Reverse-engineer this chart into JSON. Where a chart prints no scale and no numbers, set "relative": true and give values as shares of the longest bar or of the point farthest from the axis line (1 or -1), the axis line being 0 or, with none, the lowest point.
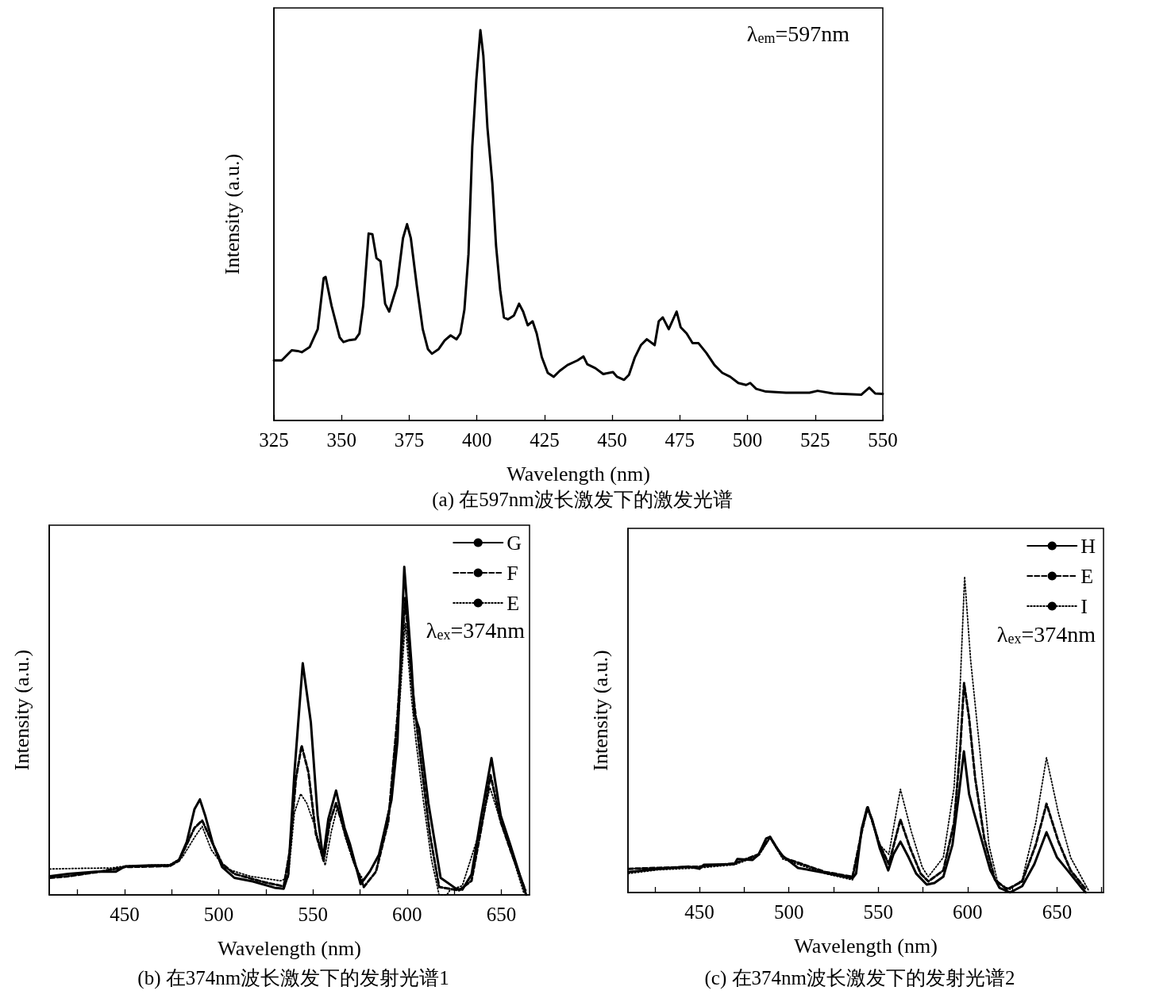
{
  "chart_data": [
    {
      "type": "line",
      "title": "(a) 在597nm波长激发下的激发光谱",
      "xlabel": "Wavelength (nm)",
      "ylabel": "Intensity (a.u.)",
      "annotations": [
        "λ$_{em}$=597nm"
      ],
      "relative": true,
      "marker": "none",
      "legend": false,
      "xlim": [
        325,
        550
      ],
      "xticks": [
        325,
        350,
        375,
        400,
        425,
        450,
        475,
        500,
        525,
        550
      ],
      "series": [
        {
          "color": "#000000",
          "line_style": "solid",
          "x": [
            325,
            327.9,
            331.6,
            333.8,
            335.3,
            338.2,
            341.2,
            343.4,
            344.1,
            346.3,
            349.3,
            350.7,
            352.9,
            355.1,
            356.6,
            358.0,
            360.0,
            361.4,
            362.9,
            364.4,
            366.1,
            367.6,
            370.5,
            372.7,
            374.2,
            375.6,
            377.8,
            380.0,
            381.9,
            383.4,
            385.9,
            388.1,
            390.3,
            392.5,
            393.9,
            395.4,
            396.9,
            398.3,
            399.8,
            401.3,
            402.4,
            403.9,
            405.7,
            407.1,
            408.6,
            410.0,
            411.5,
            413.7,
            415.6,
            417.1,
            418.8,
            420.6,
            422.1,
            424.0,
            426.2,
            428.4,
            430.6,
            433.5,
            437.2,
            439.4,
            440.8,
            443.8,
            446.7,
            450.3,
            451.8,
            454.4,
            456.2,
            458.4,
            460.6,
            462.8,
            465.7,
            467.2,
            468.7,
            470.9,
            473.8,
            475.3,
            477.5,
            479.7,
            481.9,
            484.8,
            487.8,
            490.7,
            493.6,
            496.6,
            499.5,
            501.0,
            503.2,
            506.8,
            514.2,
            522.9,
            525.9,
            531.7,
            542.0,
            545.0,
            547.2,
            550
          ],
          "values": [
            0.154,
            0.154,
            0.18,
            0.178,
            0.175,
            0.188,
            0.234,
            0.365,
            0.368,
            0.294,
            0.213,
            0.201,
            0.206,
            0.208,
            0.223,
            0.294,
            0.479,
            0.477,
            0.416,
            0.408,
            0.299,
            0.279,
            0.345,
            0.467,
            0.503,
            0.467,
            0.345,
            0.234,
            0.183,
            0.171,
            0.183,
            0.205,
            0.218,
            0.208,
            0.223,
            0.284,
            0.426,
            0.701,
            0.873,
            1,
            0.934,
            0.751,
            0.609,
            0.447,
            0.335,
            0.264,
            0.259,
            0.269,
            0.299,
            0.279,
            0.244,
            0.254,
            0.223,
            0.162,
            0.122,
            0.112,
            0.127,
            0.142,
            0.154,
            0.164,
            0.144,
            0.134,
            0.119,
            0.124,
            0.112,
            0.104,
            0.117,
            0.162,
            0.193,
            0.208,
            0.193,
            0.254,
            0.264,
            0.234,
            0.279,
            0.239,
            0.223,
            0.198,
            0.198,
            0.173,
            0.142,
            0.122,
            0.112,
            0.096,
            0.091,
            0.096,
            0.081,
            0.074,
            0.071,
            0.071,
            0.076,
            0.069,
            0.066,
            0.084,
            0.069,
            0.068
          ]
        }
      ]
    },
    {
      "type": "line",
      "title": "(b) 在374nm波长激发下的发射光谱1",
      "xlabel": "Wavelength (nm)",
      "ylabel": "Intensity (a.u.)",
      "annotations": [
        "λ$_{ex}$=374nm"
      ],
      "relative": true,
      "marker": "none",
      "legend": "top right",
      "xlim": [
        410,
        665
      ],
      "xticks": [
        {
          "value": 425,
          "label": null
        },
        450,
        {
          "value": 475,
          "label": null
        },
        500,
        {
          "value": 525,
          "label": null
        },
        550,
        {
          "value": 575,
          "label": null
        },
        600,
        {
          "value": 625,
          "label": null
        },
        650
      ],
      "series": [
        {
          "name": "G",
          "color": "#000000",
          "line_style": "solid",
          "x": [
            410.3,
            420.1,
            434.8,
            445.4,
            450.3,
            464.2,
            474.0,
            478.9,
            483.0,
            487.1,
            490.0,
            492.8,
            496.9,
            501.8,
            508.3,
            518.1,
            529.6,
            534.5,
            536.9,
            540.2,
            544.6,
            548.9,
            552.5,
            555.4,
            558.2,
            562.3,
            566.8,
            569.6,
            575.3,
            580.2,
            585.1,
            591.7,
            594.9,
            598.5,
            602.3,
            603.9,
            606.4,
            611.3,
            617.8,
            626.0,
            629.3,
            634.2,
            639.1,
            644.8,
            649.7,
            654.6,
            660.3,
            663.2
          ],
          "values": [
            0.057,
            0.064,
            0.071,
            0.071,
            0.087,
            0.09,
            0.09,
            0.107,
            0.161,
            0.261,
            0.291,
            0.242,
            0.156,
            0.085,
            0.052,
            0.041,
            0.022,
            0.019,
            0.062,
            0.374,
            0.706,
            0.526,
            0.242,
            0.111,
            0.232,
            0.318,
            0.204,
            0.156,
            0.033,
            0.071,
            0.123,
            0.289,
            0.469,
            1,
            0.706,
            0.55,
            0.507,
            0.28,
            0.052,
            0.019,
            0.016,
            0.062,
            0.232,
            0.417,
            0.242,
            0.156,
            0.052,
            0
          ]
        },
        {
          "name": "F",
          "color": "#000000",
          "line_style": "dashed",
          "x": [
            410.3,
            420.1,
            434.8,
            450.3,
            474.0,
            478.9,
            487.1,
            491.2,
            495.3,
            501.8,
            508.3,
            524.7,
            534.5,
            537.8,
            541.0,
            544.0,
            547.6,
            551.6,
            555.7,
            559.0,
            562.3,
            567.2,
            571.3,
            577.0,
            583.5,
            590.0,
            594.9,
            599.0,
            602.3,
            606.4,
            612.1,
            617.0,
            627.6,
            634.2,
            639.1,
            644.3,
            649.7,
            655.4,
            662.8
          ],
          "values": [
            0.052,
            0.057,
            0.069,
            0.085,
            0.088,
            0.104,
            0.204,
            0.227,
            0.175,
            0.095,
            0.064,
            0.038,
            0.026,
            0.137,
            0.355,
            0.455,
            0.374,
            0.185,
            0.104,
            0.223,
            0.28,
            0.185,
            0.109,
            0.024,
            0.071,
            0.223,
            0.545,
            0.905,
            0.659,
            0.45,
            0.185,
            0.024,
            0.014,
            0.043,
            0.194,
            0.365,
            0.223,
            0.128,
            0.014
          ]
        },
        {
          "name": "E",
          "color": "#000000",
          "line_style": "dotted",
          "x": [
            410.3,
            426.6,
            443.0,
            450.3,
            474.0,
            480.6,
            487.1,
            491.2,
            496.1,
            503.4,
            516.5,
            532.8,
            536.9,
            540.2,
            543.5,
            546.7,
            550.8,
            556.5,
            559.8,
            563.1,
            567.2,
            572.1,
            577.0,
            585.1,
            591.7,
            595.8,
            599.0,
            602.3,
            604.7,
            608.8,
            612.9,
            617.0,
            621.1,
            622.7,
            629.3,
            639.1,
            644.0,
            649.7,
            655.4,
            662.0
          ],
          "values": [
            0.079,
            0.081,
            0.082,
            0.088,
            0.092,
            0.114,
            0.175,
            0.209,
            0.137,
            0.081,
            0.057,
            0.043,
            0.052,
            0.251,
            0.308,
            0.28,
            0.213,
            0.09,
            0.194,
            0.27,
            0.175,
            0.09,
            0.043,
            0.118,
            0.299,
            0.564,
            0.829,
            0.602,
            0.469,
            0.28,
            0.109,
            0,
            0,
            0.014,
            0.028,
            0.204,
            0.327,
            0.223,
            0.128,
            0.005
          ]
        }
      ]
    },
    {
      "type": "line",
      "title": "(c) 在374nm波长激发下的发射光谱2",
      "xlabel": "Wavelength (nm)",
      "ylabel": "Intensity (a.u.)",
      "annotations": [
        "λ$_{ex}$=374nm"
      ],
      "relative": true,
      "marker": "none",
      "legend": "top right",
      "xlim": [
        410,
        676
      ],
      "xticks": [
        {
          "value": 425,
          "label": null
        },
        450,
        {
          "value": 475,
          "label": null
        },
        500,
        {
          "value": 525,
          "label": null
        },
        550,
        {
          "value": 575,
          "label": null
        },
        600,
        {
          "value": 625,
          "label": null
        },
        650,
        {
          "value": 675,
          "label": null
        }
      ],
      "series": [
        {
          "name": "H",
          "color": "#000000",
          "line_style": "solid",
          "x": [
            410.2,
            427.1,
            444.1,
            450,
            452.5,
            469.5,
            471.2,
            479.7,
            483.1,
            487.3,
            489.5,
            493.2,
            496.6,
            505.1,
            520.3,
            535.6,
            537.6,
            540.7,
            543.8,
            546.6,
            550.8,
            555.6,
            558.5,
            562.4,
            567.0,
            571.2,
            577.1,
            581.4,
            586.4,
            591.5,
            594.9,
            597.9,
            600.8,
            603.4,
            607.6,
            612.7,
            617.8,
            623.7,
            630.5,
            637.3,
            644.1,
            650.0,
            655.9,
            664.4,
            666.1
          ],
          "values": [
            0.065,
            0.075,
            0.082,
            0.075,
            0.088,
            0.09,
            0.106,
            0.103,
            0.121,
            0.171,
            0.176,
            0.141,
            0.116,
            0.078,
            0.062,
            0.045,
            0.06,
            0.201,
            0.269,
            0.231,
            0.141,
            0.07,
            0.121,
            0.161,
            0.111,
            0.06,
            0.025,
            0.03,
            0.05,
            0.151,
            0.302,
            0.447,
            0.312,
            0.256,
            0.171,
            0.07,
            0.015,
            0,
            0.02,
            0.09,
            0.191,
            0.111,
            0.07,
            0.01,
            0
          ]
        },
        {
          "name": "E",
          "color": "#000000",
          "line_style": "dashed",
          "x": [
            410.2,
            427.1,
            450,
            469.5,
            483.1,
            489.5,
            496.6,
            520.3,
            535.6,
            540.7,
            544.1,
            550.8,
            555.9,
            562.4,
            567.8,
            573.7,
            578.0,
            586.4,
            592.4,
            595.8,
            598.0,
            600.8,
            604.2,
            609.3,
            615.3,
            622.0,
            630.5,
            638.1,
            644.1,
            650.8,
            657.6,
            666.1
          ],
          "values": [
            0.075,
            0.078,
            0.082,
            0.092,
            0.121,
            0.176,
            0.111,
            0.065,
            0.05,
            0.191,
            0.271,
            0.151,
            0.09,
            0.231,
            0.141,
            0.06,
            0.035,
            0.07,
            0.221,
            0.452,
            0.663,
            0.553,
            0.362,
            0.171,
            0.04,
            0.01,
            0.035,
            0.151,
            0.281,
            0.161,
            0.07,
            0.01
          ]
        },
        {
          "name": "I",
          "color": "#000000",
          "line_style": "dotted",
          "x": [
            410.2,
            427.1,
            450,
            469.5,
            483.1,
            489.5,
            496.6,
            520.3,
            535.6,
            540.7,
            544.1,
            550.8,
            555.9,
            562.4,
            568.6,
            574.6,
            578.0,
            586.4,
            592.4,
            595.8,
            598.3,
            601.7,
            606.8,
            611.9,
            616.9,
            623.7,
            630.5,
            638.1,
            644.1,
            650.8,
            657.6,
            667.8
          ],
          "values": [
            0.06,
            0.072,
            0.078,
            0.088,
            0.116,
            0.173,
            0.106,
            0.06,
            0.04,
            0.191,
            0.266,
            0.151,
            0.121,
            0.327,
            0.191,
            0.08,
            0.05,
            0.111,
            0.332,
            0.653,
            1,
            0.734,
            0.452,
            0.151,
            0.03,
            0.01,
            0.04,
            0.221,
            0.427,
            0.251,
            0.111,
            0.005
          ]
        }
      ]
    }
  ]
}
